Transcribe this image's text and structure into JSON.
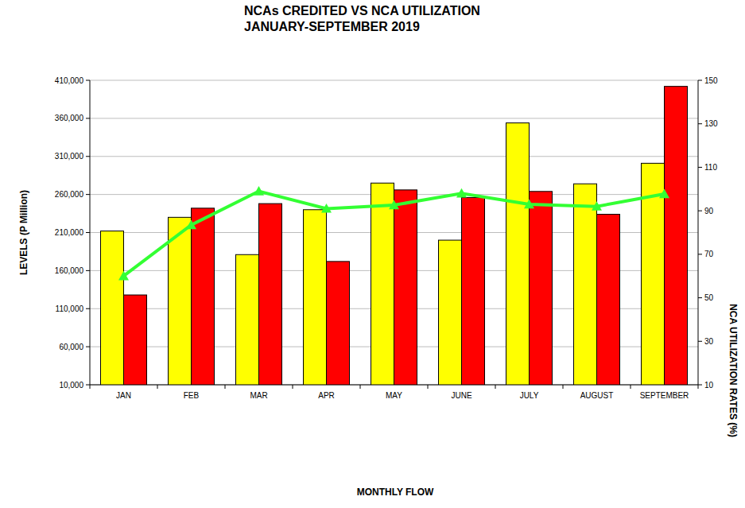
{
  "chart_data": {
    "type": "bar",
    "title": "NCAs CREDITED VS NCA UTILIZATION",
    "subtitle": "JANUARY-SEPTEMBER 2019",
    "x_label": "MONTHLY FLOW",
    "y_label": "LEVELS (P Million)",
    "y2_label": "NCA UTILIZATION RATES (%)",
    "categories": [
      "JAN",
      "FEB",
      "MAR",
      "APR",
      "MAY",
      "JUNE",
      "JULY",
      "AUGUST",
      "SEPTEMBER"
    ],
    "series": [
      {
        "type": "bar",
        "color": "#ffff00",
        "values": [
          212000,
          230000,
          181000,
          240000,
          275000,
          200000,
          354000,
          274000,
          301000
        ]
      },
      {
        "type": "bar",
        "color": "#ff0000",
        "values": [
          128000,
          242000,
          248000,
          172000,
          266000,
          256000,
          264000,
          234000,
          402000
        ]
      },
      {
        "type": "line",
        "axis": "y2",
        "color": "#33ff33",
        "marker": "triangle",
        "line_style": "solid",
        "values": [
          60,
          83.5,
          99,
          91,
          92.6,
          98,
          93,
          92,
          97.7
        ]
      }
    ],
    "ylim": [
      10000,
      410000
    ],
    "yticks": [
      {
        "value": 10000,
        "label": "10,000"
      },
      {
        "value": 60000,
        "label": "60,000"
      },
      {
        "value": 110000,
        "label": "110,000"
      },
      {
        "value": 160000,
        "label": "160,000"
      },
      {
        "value": 210000,
        "label": "210,000"
      },
      {
        "value": 260000,
        "label": "260,000"
      },
      {
        "value": 310000,
        "label": "310,000"
      },
      {
        "value": 360000,
        "label": "360,000"
      },
      {
        "value": 410000,
        "label": "410,000"
      }
    ],
    "y2lim": [
      10,
      150
    ],
    "y2ticks": [
      10,
      30,
      50,
      70,
      90,
      110,
      130,
      150
    ],
    "grid": true
  }
}
